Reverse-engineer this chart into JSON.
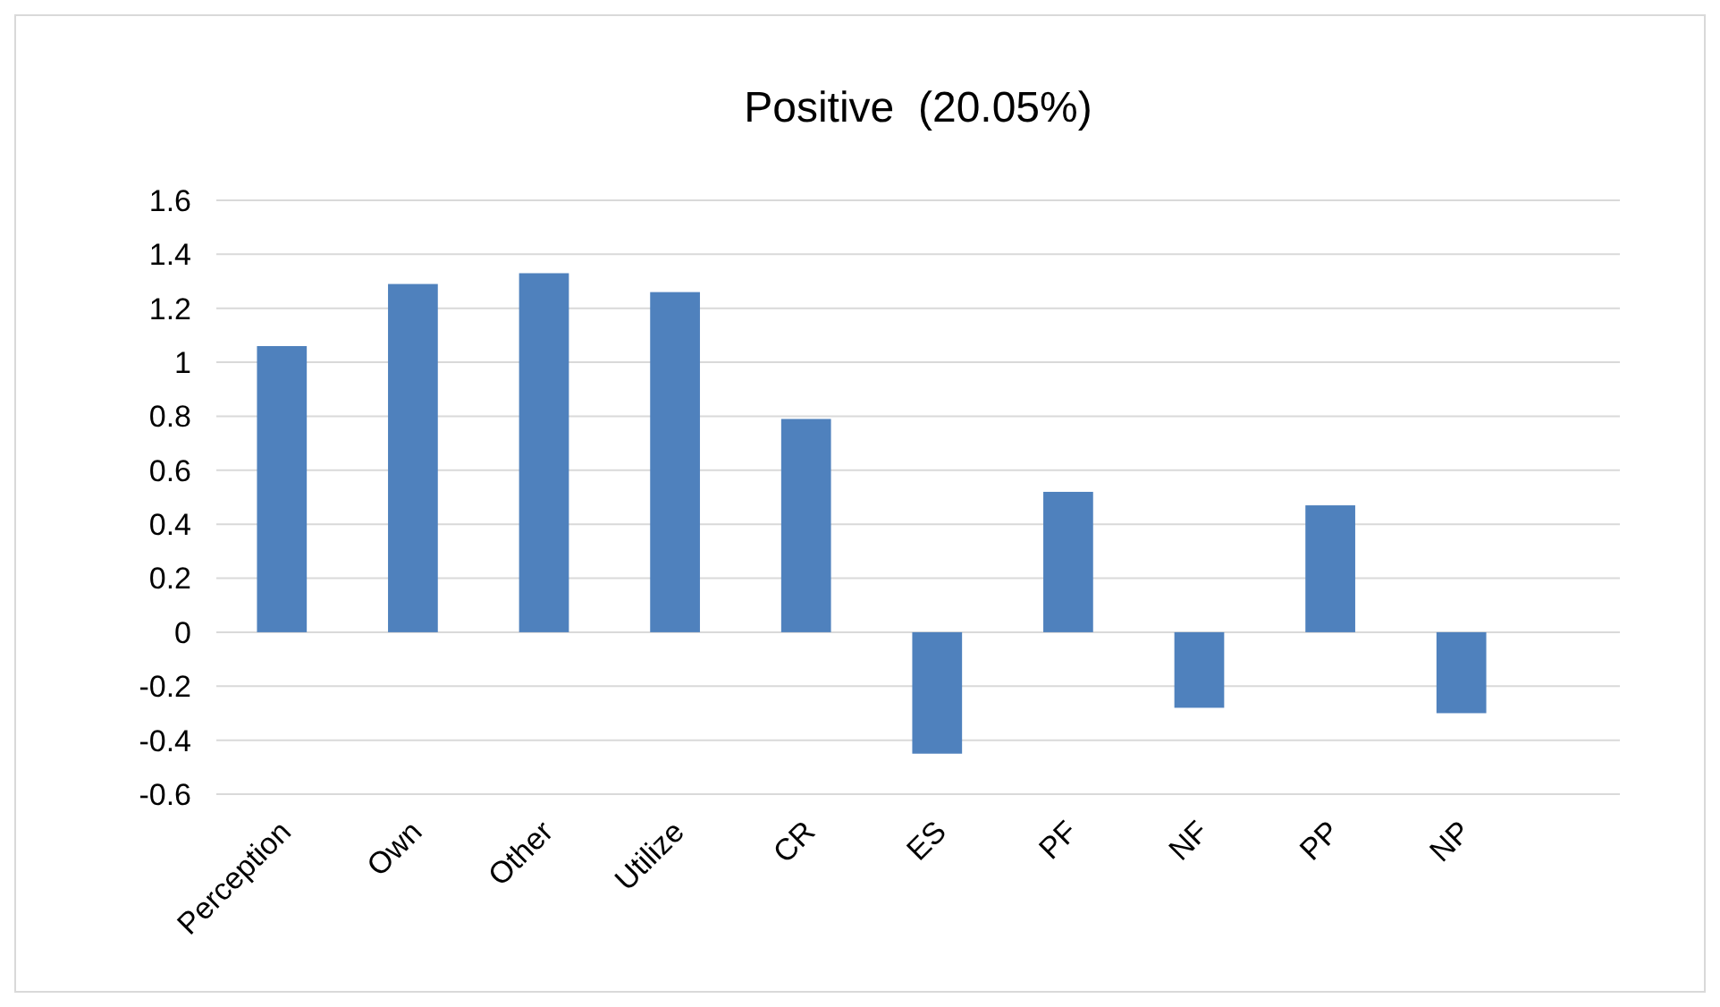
{
  "chart_data": {
    "type": "bar",
    "title": "Positive  (20.05%)",
    "categories": [
      "Perception",
      "Own",
      "Other",
      "Utilize",
      "CR",
      "ES",
      "PF",
      "NF",
      "PP",
      "NP"
    ],
    "values": [
      1.06,
      1.29,
      1.33,
      1.26,
      0.79,
      -0.45,
      0.52,
      -0.28,
      0.47,
      -0.3
    ],
    "color": "#4f81bd",
    "ylim": [
      -0.6,
      1.6
    ],
    "yticks": [
      -0.6,
      -0.4,
      -0.2,
      0,
      0.2,
      0.4,
      0.6,
      0.8,
      1,
      1.2,
      1.4,
      1.6
    ],
    "grid": "y"
  }
}
